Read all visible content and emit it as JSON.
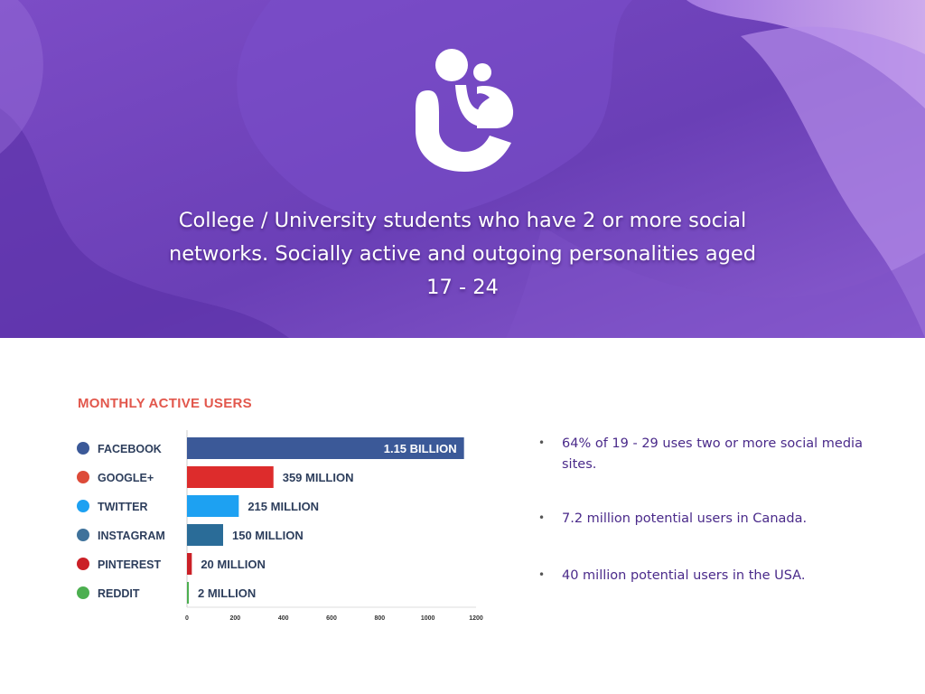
{
  "hero": {
    "headline": "College / University students who have 2 or more social networks. Socially active and outgoing personalities aged 17 - 24",
    "logo_icon": "two-person-hug-icon",
    "colors": {
      "primary": "#6a3fb6",
      "light": "#b58ce6",
      "text": "#ffffff"
    }
  },
  "chart_data": {
    "type": "bar",
    "orientation": "horizontal",
    "title": "MONTHLY ACTIVE USERS",
    "categories": [
      "FACEBOOK",
      "GOOGLE+",
      "TWITTER",
      "INSTAGRAM",
      "PINTEREST",
      "REDDIT"
    ],
    "values": [
      1150,
      359,
      215,
      150,
      20,
      2
    ],
    "value_unit": "million users",
    "data_labels": [
      "1.15 BILLION",
      "359 MILLION",
      "215 MILLION",
      "150 MILLION",
      "20 MILLION",
      "2 MILLION"
    ],
    "bar_colors": [
      "#3b5998",
      "#dd2c2c",
      "#1da1f2",
      "#2a6c98",
      "#cb2027",
      "#4caf50"
    ],
    "icon_colors": [
      "#3b5998",
      "#dd4b39",
      "#1da1f2",
      "#3f729b",
      "#cb2027",
      "#4caf50"
    ],
    "icons": [
      "facebook-icon",
      "google-plus-icon",
      "twitter-icon",
      "instagram-icon",
      "pinterest-icon",
      "reddit-icon"
    ],
    "xlim": [
      0,
      1200
    ],
    "xticks": [
      "0",
      "200",
      "400",
      "600",
      "800",
      "1000",
      "1200"
    ],
    "grid": false
  },
  "bullets": [
    {
      "text": "64% of 19 - 29 uses two or more social media sites."
    },
    {
      "text": "7.2 million potential users in Canada."
    },
    {
      "text": "40 million potential users in the USA."
    }
  ]
}
